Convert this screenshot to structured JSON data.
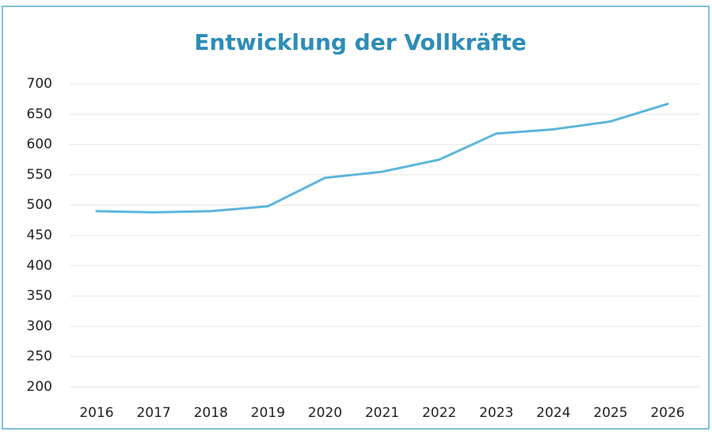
{
  "chart_data": {
    "type": "line",
    "title": "Entwicklung der Vollkräfte",
    "categories": [
      "2016",
      "2017",
      "2018",
      "2019",
      "2020",
      "2021",
      "2022",
      "2023",
      "2024",
      "2025",
      "2026"
    ],
    "series": [
      {
        "name": "Vollkräfte",
        "color": "#5cb6da",
        "values": [
          490,
          488,
          490,
          498,
          545,
          555,
          575,
          618,
          625,
          638,
          667
        ]
      }
    ],
    "ylim": [
      200,
      700
    ],
    "yticks": [
      200,
      250,
      300,
      350,
      400,
      450,
      500,
      550,
      600,
      650,
      700
    ],
    "grid": true
  }
}
